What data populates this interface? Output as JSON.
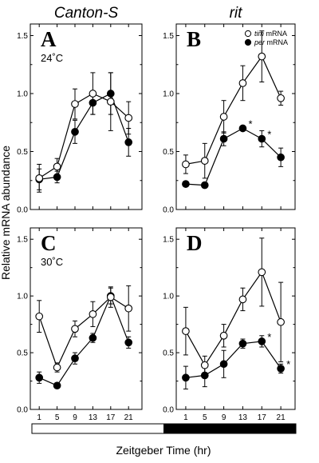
{
  "chart_data": [
    {
      "type": "line",
      "panel": "A",
      "column_title": "Canton-S",
      "annotation": "24˚C",
      "x": [
        1,
        5,
        9,
        13,
        17,
        21
      ],
      "ylim": [
        0,
        1.6
      ],
      "yticks": [
        "0.0",
        "0.5",
        "1.0",
        "1.5"
      ],
      "xticks": [
        "1",
        "5",
        "9",
        "13",
        "17",
        "21"
      ],
      "series": [
        {
          "key": "tim",
          "values": [
            0.27,
            0.37,
            0.91,
            1.0,
            0.93,
            0.79
          ],
          "err": [
            0.12,
            0.07,
            0.13,
            0.18,
            0.25,
            0.14
          ],
          "marker": "open"
        },
        {
          "key": "per",
          "values": [
            0.26,
            0.28,
            0.67,
            0.92,
            1.0,
            0.58
          ],
          "err": [
            0.09,
            0.05,
            0.1,
            0.1,
            0.18,
            0.12
          ],
          "marker": "filled"
        }
      ],
      "significance": []
    },
    {
      "type": "line",
      "panel": "B",
      "column_title": "rit",
      "annotation": "",
      "x": [
        1,
        5,
        9,
        13,
        17,
        21
      ],
      "ylim": [
        0,
        1.6
      ],
      "yticks": [
        "0.0",
        "0.5",
        "1.0",
        "1.5"
      ],
      "xticks": [
        "1",
        "5",
        "9",
        "13",
        "17",
        "21"
      ],
      "series": [
        {
          "key": "tim",
          "values": [
            0.39,
            0.42,
            0.8,
            1.09,
            1.32,
            0.96
          ],
          "err": [
            0.08,
            0.15,
            0.14,
            0.15,
            0.22,
            0.06
          ],
          "marker": "open"
        },
        {
          "key": "per",
          "values": [
            0.22,
            0.21,
            0.61,
            0.7,
            0.61,
            0.45
          ],
          "err": [
            0.0,
            0.0,
            0.06,
            0.0,
            0.07,
            0.08
          ],
          "marker": "filled"
        }
      ],
      "significance": [
        {
          "x": 13,
          "y": 0.7,
          "label": "*"
        },
        {
          "x": 17,
          "y": 0.61,
          "label": "*"
        }
      ],
      "legend": [
        {
          "series": "tim",
          "italic": "tim",
          "rest": " mRNA",
          "marker": "open"
        },
        {
          "series": "per",
          "italic": "per",
          "rest": " mRNA",
          "marker": "filled"
        }
      ]
    },
    {
      "type": "line",
      "panel": "C",
      "column_title": "",
      "annotation": "30˚C",
      "x": [
        1,
        5,
        9,
        13,
        17,
        21
      ],
      "ylim": [
        0,
        1.6
      ],
      "yticks": [
        "0.0",
        "0.5",
        "1.0",
        "1.5"
      ],
      "xticks": [
        "1",
        "5",
        "9",
        "13",
        "17",
        "21"
      ],
      "series": [
        {
          "key": "tim",
          "values": [
            0.82,
            0.37,
            0.71,
            0.84,
            0.99,
            0.89
          ],
          "err": [
            0.14,
            0.04,
            0.07,
            0.11,
            0.09,
            0.2
          ],
          "marker": "open"
        },
        {
          "key": "per",
          "values": [
            0.28,
            0.21,
            0.45,
            0.63,
            1.0,
            0.59
          ],
          "err": [
            0.05,
            0.0,
            0.05,
            0.04,
            0.07,
            0.05
          ],
          "marker": "filled"
        }
      ],
      "significance": []
    },
    {
      "type": "line",
      "panel": "D",
      "column_title": "",
      "annotation": "",
      "x": [
        1,
        5,
        9,
        13,
        17,
        21
      ],
      "ylim": [
        0,
        1.6
      ],
      "yticks": [
        "0.0",
        "0.5",
        "1.0",
        "1.5"
      ],
      "xticks": [
        "1",
        "5",
        "9",
        "13",
        "17",
        "21"
      ],
      "series": [
        {
          "key": "tim",
          "values": [
            0.69,
            0.39,
            0.65,
            0.97,
            1.21,
            0.77
          ],
          "err": [
            0.21,
            0.08,
            0.1,
            0.1,
            0.3,
            0.35
          ],
          "marker": "open"
        },
        {
          "key": "per",
          "values": [
            0.28,
            0.3,
            0.4,
            0.58,
            0.6,
            0.36
          ],
          "err": [
            0.1,
            0.1,
            0.12,
            0.04,
            0.05,
            0.04
          ],
          "marker": "filled"
        }
      ],
      "significance": [
        {
          "x": 17,
          "y": 0.6,
          "label": "*"
        },
        {
          "x": 21,
          "y": 0.36,
          "label": "*"
        }
      ]
    }
  ],
  "ylabel": "Relative mRNA abundance",
  "xlabel": "Zeitgeber Time (hr)",
  "light_dark_bar": [
    {
      "from": 0,
      "to": 12,
      "state": "light"
    },
    {
      "from": 12,
      "to": 24,
      "state": "dark"
    }
  ]
}
